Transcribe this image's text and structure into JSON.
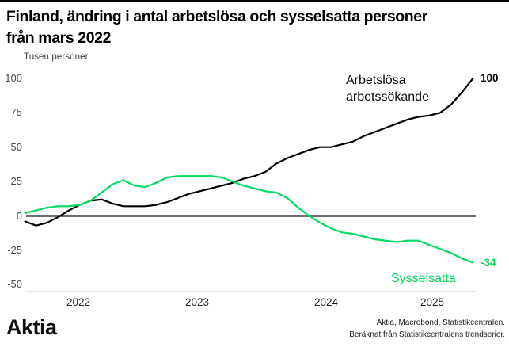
{
  "header": {
    "title_lines": [
      "Finland, ändring i antal arbetslösa och sysselsatta personer",
      "från mars 2022"
    ],
    "subtitle": "Tusen personer"
  },
  "chart_data": {
    "type": "line",
    "title": "Finland, ändring i antal arbetslösa och sysselsatta personer från mars 2022",
    "unit_label": "Tusen personer",
    "grid": false,
    "legend_position": "inline-labels",
    "ylim": [
      -50,
      100
    ],
    "yticks": [
      100,
      75,
      50,
      25,
      0,
      -25,
      -50
    ],
    "xtick_labels": [
      "2022",
      "2023",
      "2024",
      "2025"
    ],
    "months": [
      "2022-03",
      "2022-04",
      "2022-05",
      "2022-06",
      "2022-07",
      "2022-08",
      "2022-09",
      "2022-10",
      "2022-11",
      "2022-12",
      "2023-01",
      "2023-02",
      "2023-03",
      "2023-04",
      "2023-05",
      "2023-06",
      "2023-07",
      "2023-08",
      "2023-09",
      "2023-10",
      "2023-11",
      "2023-12",
      "2024-01",
      "2024-02",
      "2024-03",
      "2024-04",
      "2024-05",
      "2024-06",
      "2024-07",
      "2024-08",
      "2024-09",
      "2024-10",
      "2024-11",
      "2024-12",
      "2025-01",
      "2025-02",
      "2025-03",
      "2025-04",
      "2025-05",
      "2025-06",
      "2025-07",
      "2025-08"
    ],
    "series": [
      {
        "name": "Arbetslösa arbetssökande",
        "label_lines": [
          "Arbetslösa",
          "arbetssökande"
        ],
        "color": "#000000",
        "end_label": "100",
        "values": [
          -4,
          -7,
          -5,
          -1,
          4,
          8,
          11,
          12,
          9,
          7,
          7,
          7,
          8,
          10,
          13,
          16,
          18,
          20,
          22,
          24,
          27,
          29,
          32,
          38,
          42,
          45,
          48,
          50,
          50,
          52,
          54,
          58,
          61,
          64,
          67,
          70,
          72,
          73,
          75,
          81,
          90,
          100
        ]
      },
      {
        "name": "Sysselsatta",
        "label_lines": [
          "Sysselsatta"
        ],
        "color": "#00DC5F",
        "end_label": "-34",
        "values": [
          2,
          4,
          6,
          7,
          7,
          8,
          11,
          17,
          23,
          26,
          22,
          21,
          24,
          28,
          29,
          29,
          29,
          29,
          28,
          25,
          22,
          20,
          18,
          17,
          13,
          6,
          0,
          -5,
          -9,
          -12,
          -13,
          -15,
          -17,
          -18,
          -19,
          -18,
          -18,
          -21,
          -24,
          -27,
          -31,
          -34
        ]
      }
    ]
  },
  "footer": {
    "logo": "Aktia",
    "source_lines": [
      "Aktia, Macrobond, Statistikcentralen.",
      "Beräknat från Statistikcentralens trendserier."
    ]
  },
  "colors": {
    "accent_green": "#00DC5F",
    "line_black": "#000000",
    "zero_line": "#3d3d3d",
    "axis_line": "#c8c8c8",
    "tick_text": "#4a4a4a"
  }
}
